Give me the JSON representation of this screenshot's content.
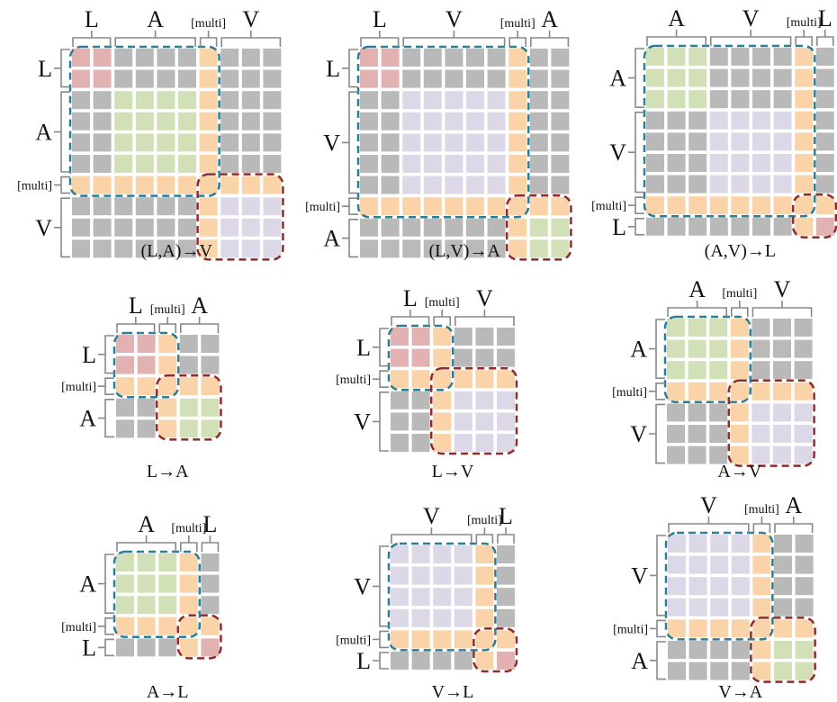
{
  "legend": {
    "token_labels": {
      "L": "L",
      "A": "A",
      "V": "V",
      "M": "[multi]"
    }
  },
  "colors": {
    "L": "#e2b1b1",
    "A": "#d2e0b7",
    "V": "#ddd8e7",
    "M": "#fbd3a9",
    "masked": "#b9b9b9",
    "source_box": "#2a7e96",
    "target_box": "#8e2c2c",
    "bracket": "#888888"
  },
  "panels": [
    {
      "caption": "(L,A)→V",
      "order": [
        "L",
        "A",
        "M",
        "V"
      ],
      "sizes": [
        2,
        4,
        1,
        3
      ]
    },
    {
      "caption": "(L,V)→A",
      "order": [
        "L",
        "V",
        "M",
        "A"
      ],
      "sizes": [
        2,
        5,
        1,
        2
      ]
    },
    {
      "caption": "(A,V)→L",
      "order": [
        "A",
        "V",
        "M",
        "L"
      ],
      "sizes": [
        3,
        4,
        1,
        1
      ]
    },
    {
      "caption": "L→A",
      "order": [
        "L",
        "M",
        "A"
      ],
      "sizes": [
        2,
        1,
        2
      ]
    },
    {
      "caption": "L→V",
      "order": [
        "L",
        "M",
        "V"
      ],
      "sizes": [
        2,
        1,
        3
      ]
    },
    {
      "caption": "A→V",
      "order": [
        "A",
        "M",
        "V"
      ],
      "sizes": [
        3,
        1,
        3
      ]
    },
    {
      "caption": "A→L",
      "order": [
        "A",
        "M",
        "L"
      ],
      "sizes": [
        3,
        1,
        1
      ]
    },
    {
      "caption": "V→L",
      "order": [
        "V",
        "M",
        "L"
      ],
      "sizes": [
        4,
        1,
        1
      ]
    },
    {
      "caption": "V→A",
      "order": [
        "V",
        "M",
        "A"
      ],
      "sizes": [
        4,
        1,
        2
      ]
    }
  ]
}
